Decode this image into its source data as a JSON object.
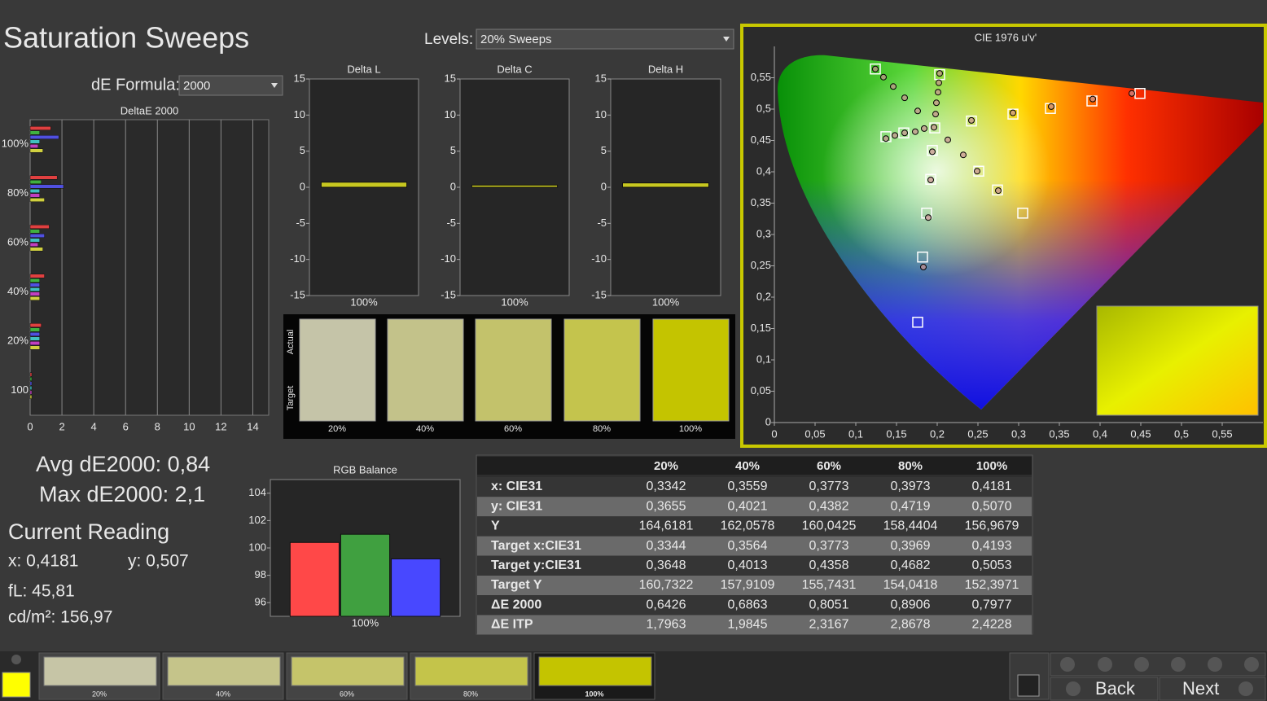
{
  "title": "Saturation Sweeps",
  "levels_label": "Levels:",
  "levels_value": "20% Sweeps",
  "de_formula_label": "dE Formula:",
  "de_formula_value": "2000",
  "stats": {
    "avg": "Avg dE2000: 0,84",
    "max": "Max dE2000: 2,1"
  },
  "current_reading": {
    "title": "Current Reading",
    "x": "x: 0,4181",
    "y": "y: 0,507",
    "fl": "fL: 45,81",
    "cdm2": "cd/m²: 156,97"
  },
  "swatch_panel": {
    "actual_label": "Actual",
    "target_label": "Target",
    "labels": [
      "20%",
      "40%",
      "60%",
      "80%",
      "100%"
    ],
    "colors": [
      "#c5c4a8",
      "#c3c28a",
      "#c3c26b",
      "#c4c44d",
      "#c4c400"
    ]
  },
  "table": {
    "header": [
      "20%",
      "40%",
      "60%",
      "80%",
      "100%"
    ],
    "rows": [
      [
        "x: CIE31",
        "0,3342",
        "0,3559",
        "0,3773",
        "0,3973",
        "0,4181"
      ],
      [
        "y: CIE31",
        "0,3655",
        "0,4021",
        "0,4382",
        "0,4719",
        "0,5070"
      ],
      [
        "Y",
        "164,6181",
        "162,0578",
        "160,0425",
        "158,4404",
        "156,9679"
      ],
      [
        "Target x:CIE31",
        "0,3344",
        "0,3564",
        "0,3773",
        "0,3969",
        "0,4193"
      ],
      [
        "Target y:CIE31",
        "0,3648",
        "0,4013",
        "0,4358",
        "0,4682",
        "0,5053"
      ],
      [
        "Target Y",
        "160,7322",
        "157,9109",
        "155,7431",
        "154,0418",
        "152,3971"
      ],
      [
        "ΔE 2000",
        "0,6426",
        "0,6863",
        "0,8051",
        "0,8906",
        "0,7977"
      ],
      [
        "ΔE ITP",
        "1,7963",
        "1,9845",
        "2,3167",
        "2,8678",
        "2,4228"
      ]
    ]
  },
  "bottom_bar": {
    "labels": [
      "20%",
      "40%",
      "60%",
      "80%",
      "100%"
    ],
    "colors": [
      "#c6c5a6",
      "#c5c48a",
      "#c5c46a",
      "#c4c44a",
      "#c4c400"
    ],
    "back": "Back",
    "next": "Next"
  },
  "chart_data": [
    {
      "type": "hbar",
      "title": "DeltaE 2000",
      "categories": [
        "100%",
        "80%",
        "60%",
        "40%",
        "20%",
        "100"
      ],
      "series": [
        {
          "color": "#e04040",
          "values": [
            1.3,
            1.7,
            1.2,
            0.9,
            0.7,
            0.1
          ]
        },
        {
          "color": "#40b040",
          "values": [
            0.6,
            0.7,
            0.6,
            0.6,
            0.6,
            0.1
          ]
        },
        {
          "color": "#5050e0",
          "values": [
            1.8,
            2.1,
            0.9,
            0.6,
            0.6,
            0.1
          ]
        },
        {
          "color": "#40c0c0",
          "values": [
            0.6,
            0.6,
            0.6,
            0.6,
            0.6,
            0.1
          ]
        },
        {
          "color": "#c040c0",
          "values": [
            0.5,
            0.6,
            0.5,
            0.6,
            0.6,
            0.1
          ]
        },
        {
          "color": "#d0d040",
          "values": [
            0.8,
            0.9,
            0.8,
            0.6,
            0.6,
            0.1
          ]
        }
      ],
      "xlim": [
        0,
        15
      ],
      "xticks": [
        0,
        2,
        4,
        6,
        8,
        10,
        12,
        14
      ],
      "grid": true
    },
    {
      "type": "bar",
      "title": "Delta L",
      "categories": [
        "100%"
      ],
      "values": [
        0.7
      ],
      "color": "#c8c820",
      "ylim": [
        -15,
        15
      ],
      "yticks": [
        15,
        10,
        5,
        0,
        -5,
        -10,
        -15
      ]
    },
    {
      "type": "bar",
      "title": "Delta C",
      "categories": [
        "100%"
      ],
      "values": [
        0.3
      ],
      "color": "#c8c820",
      "ylim": [
        -15,
        15
      ],
      "yticks": [
        15,
        10,
        5,
        0,
        -5,
        -10,
        -15
      ]
    },
    {
      "type": "bar",
      "title": "Delta H",
      "categories": [
        "100%"
      ],
      "values": [
        0.6
      ],
      "color": "#c8c820",
      "ylim": [
        -15,
        15
      ],
      "yticks": [
        15,
        10,
        5,
        0,
        -5,
        -10,
        -15
      ]
    },
    {
      "type": "bar",
      "title": "RGB Balance",
      "categories": [
        "100%"
      ],
      "series": [
        {
          "color": "#ff4848",
          "values": [
            100.4
          ]
        },
        {
          "color": "#40a040",
          "values": [
            101.0
          ]
        },
        {
          "color": "#4848ff",
          "values": [
            99.2
          ]
        }
      ],
      "ylim": [
        95,
        105
      ],
      "yticks": [
        96,
        98,
        100,
        102,
        104
      ]
    },
    {
      "type": "scatter",
      "title": "CIE 1976 u'v'",
      "series": [
        {
          "marker": "square",
          "color": "#ffffff",
          "x": [
            0.124,
            0.203,
            0.449,
            0.39,
            0.339,
            0.293,
            0.242,
            0.197,
            0.159,
            0.137,
            0.194,
            0.251,
            0.192,
            0.274,
            0.187,
            0.305,
            0.182,
            0.176
          ],
          "y": [
            0.564,
            0.555,
            0.525,
            0.513,
            0.501,
            0.492,
            0.481,
            0.47,
            0.462,
            0.456,
            0.434,
            0.401,
            0.388,
            0.371,
            0.334,
            0.334,
            0.264,
            0.16
          ]
        },
        {
          "marker": "circle",
          "color": "#000000",
          "x": [
            0.124,
            0.134,
            0.146,
            0.16,
            0.176,
            0.184,
            0.173,
            0.16,
            0.148,
            0.137,
            0.203,
            0.202,
            0.201,
            0.199,
            0.198,
            0.196,
            0.213,
            0.232,
            0.249,
            0.275,
            0.194,
            0.192,
            0.189,
            0.183,
            0.242,
            0.293,
            0.34,
            0.391,
            0.439
          ],
          "y": [
            0.564,
            0.551,
            0.536,
            0.518,
            0.497,
            0.469,
            0.464,
            0.462,
            0.458,
            0.453,
            0.557,
            0.542,
            0.527,
            0.51,
            0.492,
            0.471,
            0.451,
            0.427,
            0.401,
            0.37,
            0.432,
            0.387,
            0.327,
            0.248,
            0.482,
            0.494,
            0.504,
            0.516,
            0.525
          ]
        }
      ],
      "xlim": [
        0,
        0.6
      ],
      "ylim": [
        0,
        0.6
      ],
      "xticks": [
        0,
        {
          "value": 0.05,
          "label": "0,05"
        },
        {
          "value": 0.1,
          "label": "0,1"
        },
        {
          "value": 0.15,
          "label": "0,15"
        },
        {
          "value": 0.2,
          "label": "0,2"
        },
        {
          "value": 0.25,
          "label": "0,25"
        },
        {
          "value": 0.3,
          "label": "0,3"
        },
        {
          "value": 0.35,
          "label": "0,35"
        },
        {
          "value": 0.4,
          "label": "0,4"
        },
        {
          "value": 0.45,
          "label": "0,45"
        },
        {
          "value": 0.5,
          "label": "0,5"
        },
        {
          "value": 0.55,
          "label": "0,55"
        }
      ],
      "yticks": [
        0,
        {
          "value": 0.05,
          "label": "0,05"
        },
        {
          "value": 0.1,
          "label": "0,1"
        },
        {
          "value": 0.15,
          "label": "0,15"
        },
        {
          "value": 0.2,
          "label": "0,2"
        },
        {
          "value": 0.25,
          "label": "0,25"
        },
        {
          "value": 0.3,
          "label": "0,3"
        },
        {
          "value": 0.35,
          "label": "0,35"
        },
        {
          "value": 0.4,
          "label": "0,4"
        },
        {
          "value": 0.45,
          "label": "0,45"
        },
        {
          "value": 0.5,
          "label": "0,5"
        },
        {
          "value": 0.55,
          "label": "0,55"
        }
      ]
    }
  ]
}
